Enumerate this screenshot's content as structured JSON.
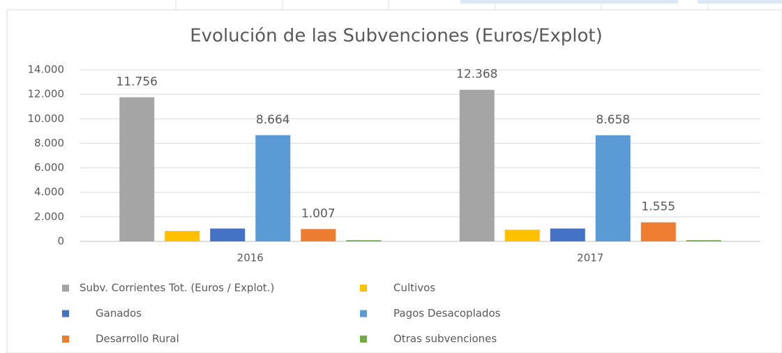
{
  "chart_data": {
    "type": "bar",
    "title": "Evolución de las Subvenciones (Euros/Explot)",
    "categories": [
      "2016",
      "2017"
    ],
    "series": [
      {
        "name": "Subv. Corrientes Tot.  (Euros / Explot.)",
        "color": "#a5a5a5",
        "values": [
          11756,
          12368
        ],
        "value_labels": [
          "11.756",
          "12.368"
        ]
      },
      {
        "name": "Cultivos",
        "color": "#ffc000",
        "values": [
          850,
          950
        ]
      },
      {
        "name": "Ganados",
        "color": "#4472c4",
        "values": [
          1050,
          1050
        ]
      },
      {
        "name": "Pagos Desacoplados",
        "color": "#5b9bd5",
        "values": [
          8664,
          8658
        ],
        "value_labels": [
          "8.664",
          "8.658"
        ]
      },
      {
        "name": "Desarrollo Rural",
        "color": "#ed7d31",
        "values": [
          1007,
          1555
        ],
        "value_labels": [
          "1.007",
          "1.555"
        ]
      },
      {
        "name": "Otras subvenciones",
        "color": "#70ad47",
        "values": [
          100,
          100
        ]
      }
    ],
    "ylim": [
      0,
      14000
    ],
    "yticks": [
      0,
      {
        "value": 2000,
        "label": "2.000"
      },
      {
        "value": 4000,
        "label": "4.000"
      },
      {
        "value": 6000,
        "label": "6.000"
      },
      {
        "value": 8000,
        "label": "8.000"
      },
      {
        "value": 10000,
        "label": "10.000"
      },
      {
        "value": 12000,
        "label": "12.000"
      },
      {
        "value": 14000,
        "label": "14.000"
      }
    ],
    "grid": true,
    "legend": "bottom"
  }
}
